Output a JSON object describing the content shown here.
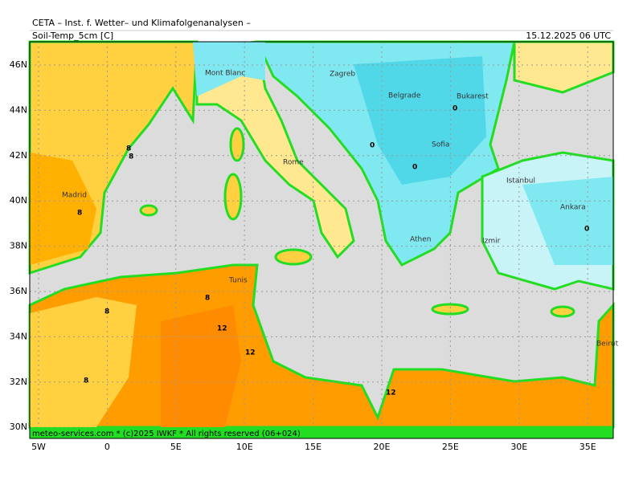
{
  "header": {
    "title": "CETA – Inst. f. Wetter– und Klimafolgenanalysen –",
    "parameter": "Soil-Temp_5cm [C]",
    "valid_time": "15.12.2025 06 UTC"
  },
  "map": {
    "lat_labels": [
      "46N",
      "44N",
      "42N",
      "40N",
      "38N",
      "36N",
      "34N",
      "32N",
      "30N"
    ],
    "lon_labels": [
      "5W",
      "0",
      "5E",
      "10E",
      "15E",
      "20E",
      "25E",
      "30E",
      "35E"
    ],
    "cities": [
      "Mont Blanc",
      "Zagreb",
      "Belgrade",
      "Bukarest",
      "Sofia",
      "Rome",
      "Madrid",
      "Istanbul",
      "Ankara",
      "Athen",
      "Izmir",
      "Tunis",
      "Beirut"
    ],
    "contour_labels": [
      "8",
      "8",
      "8",
      "8",
      "8",
      "12",
      "12",
      "0",
      "0",
      "0",
      "0",
      "8",
      "12"
    ]
  },
  "footer": "meteo-services.com * (c)2025 IWKF * All rights reserved (06+024)"
}
